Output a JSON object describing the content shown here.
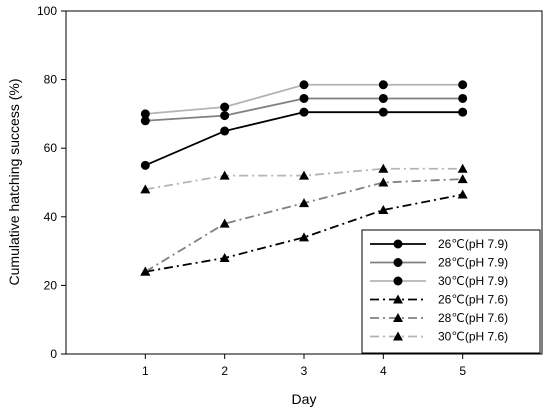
{
  "chart_data": {
    "type": "line",
    "xlabel": "Day",
    "ylabel": "Cumulative hatching success (%)",
    "xlim": [
      0,
      6
    ],
    "ylim": [
      0,
      100
    ],
    "xticks": [
      "1",
      "2",
      "3",
      "4",
      "5"
    ],
    "yticks": [
      "0",
      "20",
      "40",
      "60",
      "80",
      "100"
    ],
    "legend_position": "bottom-right",
    "x": [
      1,
      2,
      3,
      4,
      5
    ],
    "series": [
      {
        "name": "26℃(pH 7.9)",
        "values": [
          55,
          65,
          70.5,
          70.5,
          70.5
        ],
        "color": "#000000",
        "marker": "circle",
        "dash": "solid"
      },
      {
        "name": "28℃(pH 7.9)",
        "values": [
          68,
          69.5,
          74.5,
          74.5,
          74.5
        ],
        "color": "#808080",
        "marker": "circle",
        "dash": "solid"
      },
      {
        "name": "30℃(pH 7.9)",
        "values": [
          70,
          72,
          78.5,
          78.5,
          78.5
        ],
        "color": "#b4b4b4",
        "marker": "circle",
        "dash": "solid"
      },
      {
        "name": "26℃(pH 7.6)",
        "values": [
          24,
          28,
          34,
          42,
          46.5
        ],
        "color": "#000000",
        "marker": "triangle",
        "dash": "dashdot"
      },
      {
        "name": "28℃(pH 7.6)",
        "values": [
          24,
          38,
          44,
          50,
          51
        ],
        "color": "#808080",
        "marker": "triangle",
        "dash": "dashdot"
      },
      {
        "name": "30℃(pH 7.6)",
        "values": [
          48,
          52,
          52,
          54,
          54
        ],
        "color": "#b4b4b4",
        "marker": "triangle",
        "dash": "dashdot"
      }
    ]
  }
}
